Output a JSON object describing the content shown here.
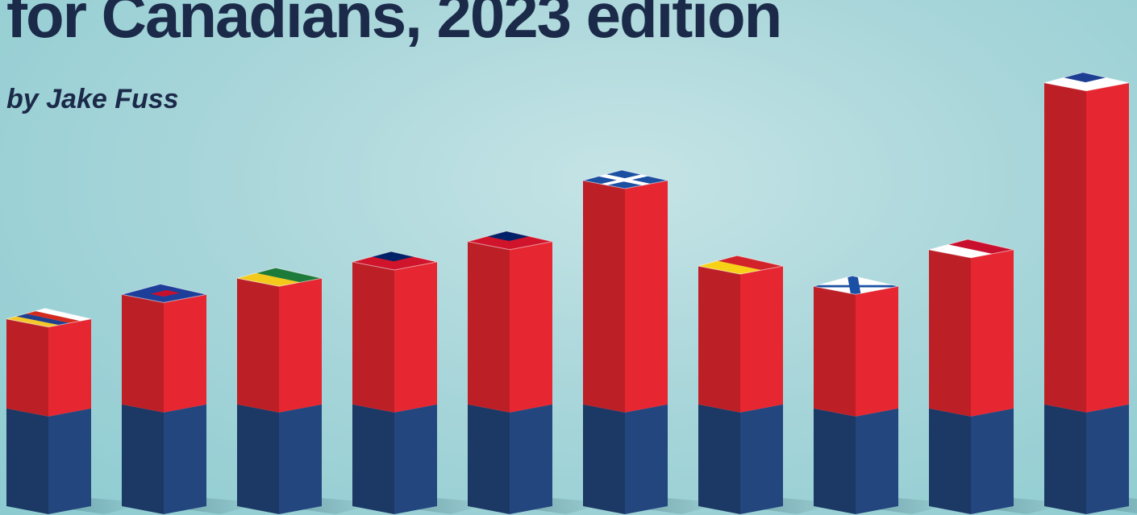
{
  "header": {
    "title": "for Canadians, 2023 edition",
    "byline": "by Jake Fuss"
  },
  "colors": {
    "bar_top_segment": "#e62630",
    "bar_bottom_segment": "#23467e",
    "background": "#a9d6da",
    "text": "#1c2a4a"
  },
  "chart_data": {
    "type": "bar",
    "stacked": true,
    "categories": [
      "British Columbia",
      "Alberta",
      "Saskatchewan",
      "Manitoba",
      "Ontario",
      "Quebec",
      "New Brunswick",
      "Nova Scotia",
      "Prince Edward Island",
      "Newfoundland and Labrador"
    ],
    "series": [
      {
        "values": [
          24,
          25,
          25,
          25,
          25,
          25,
          25,
          24,
          24,
          25
        ]
      },
      {
        "values": [
          22,
          27,
          31,
          35,
          40,
          55,
          34,
          30,
          39,
          79
        ]
      }
    ],
    "category_icons": [
      "bc-flag-icon",
      "alberta-flag-icon",
      "saskatchewan-flag-icon",
      "manitoba-flag-icon",
      "ontario-flag-icon",
      "quebec-flag-icon",
      "new-brunswick-flag-icon",
      "nova-scotia-flag-icon",
      "pei-flag-icon",
      "newfoundland-flag-icon"
    ],
    "axes_shown": false,
    "grid": false,
    "legend": "none"
  }
}
